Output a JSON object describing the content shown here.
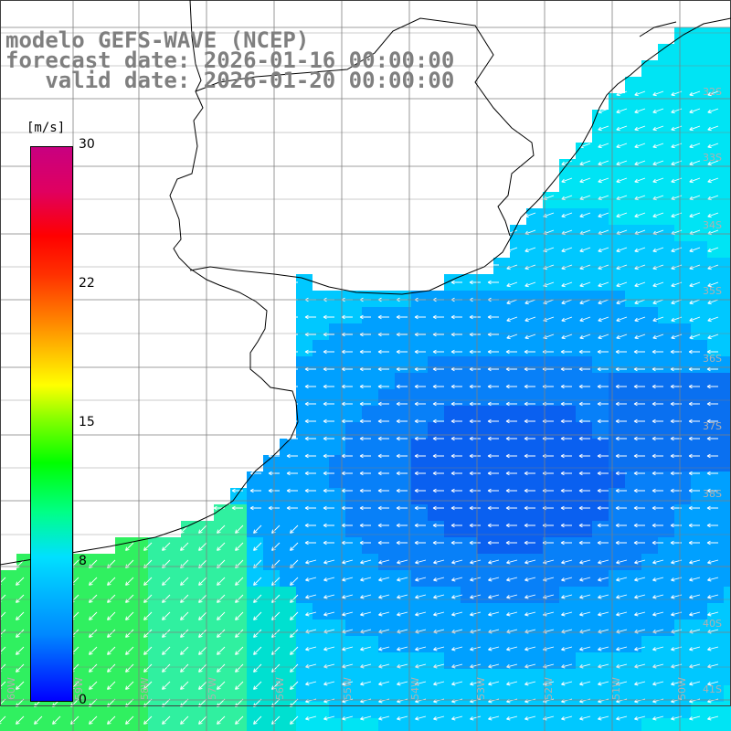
{
  "title": {
    "line1": "modelo GEFS-WAVE (NCEP)",
    "line2": "forecast date: 2026-01-16 00:00:00",
    "line3": "   valid date: 2026-01-20 00:00:00"
  },
  "colorbar": {
    "unit": "[m/s]",
    "ticks": [
      "30",
      "22",
      "15",
      "8",
      "0"
    ],
    "min": 0,
    "max": 30,
    "colors": [
      "#0000ff",
      "#0088ff",
      "#00e0ff",
      "#00ff88",
      "#00ff00",
      "#88ff00",
      "#ffff00",
      "#ffc000",
      "#ff8000",
      "#ff3000",
      "#ff0000",
      "#e00060",
      "#c80080"
    ]
  },
  "map": {
    "lat_labels": [
      "32S",
      "33S",
      "34S",
      "35S",
      "36S",
      "37S",
      "38S",
      "40S",
      "41S"
    ],
    "lon_labels": [
      "60W",
      "59W",
      "58W",
      "57W",
      "56W",
      "55W",
      "54W",
      "53W",
      "52W",
      "51W",
      "50W"
    ],
    "colors": {
      "land": "#ffffff",
      "grid": "#7f7f7f",
      "coast": "#000000",
      "arrow": "#ffffff",
      "label": "#b0b0b0"
    },
    "wind_field_note_colors": {
      "strong_cyan": "#00e8f0",
      "mid_blue": "#0090ff",
      "deep_blue": "#1060f0",
      "green": "#30f060"
    }
  }
}
